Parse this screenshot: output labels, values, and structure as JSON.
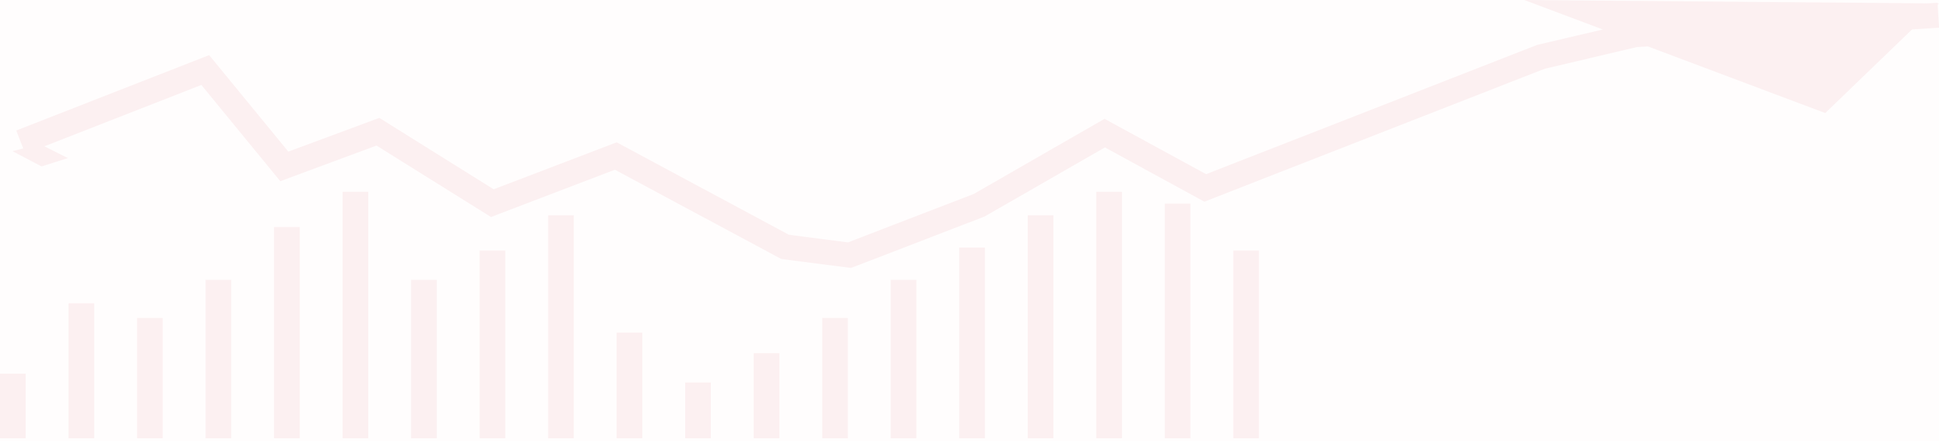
{
  "graphic": {
    "kind": "decorative-growth-illustration",
    "color": "#fcf0f1",
    "background": "#fffdfd",
    "bar_values": [
      22,
      46,
      41,
      54,
      72,
      84,
      54,
      64,
      76,
      36,
      19,
      29,
      41,
      54,
      65,
      76,
      84,
      80,
      64
    ]
  }
}
